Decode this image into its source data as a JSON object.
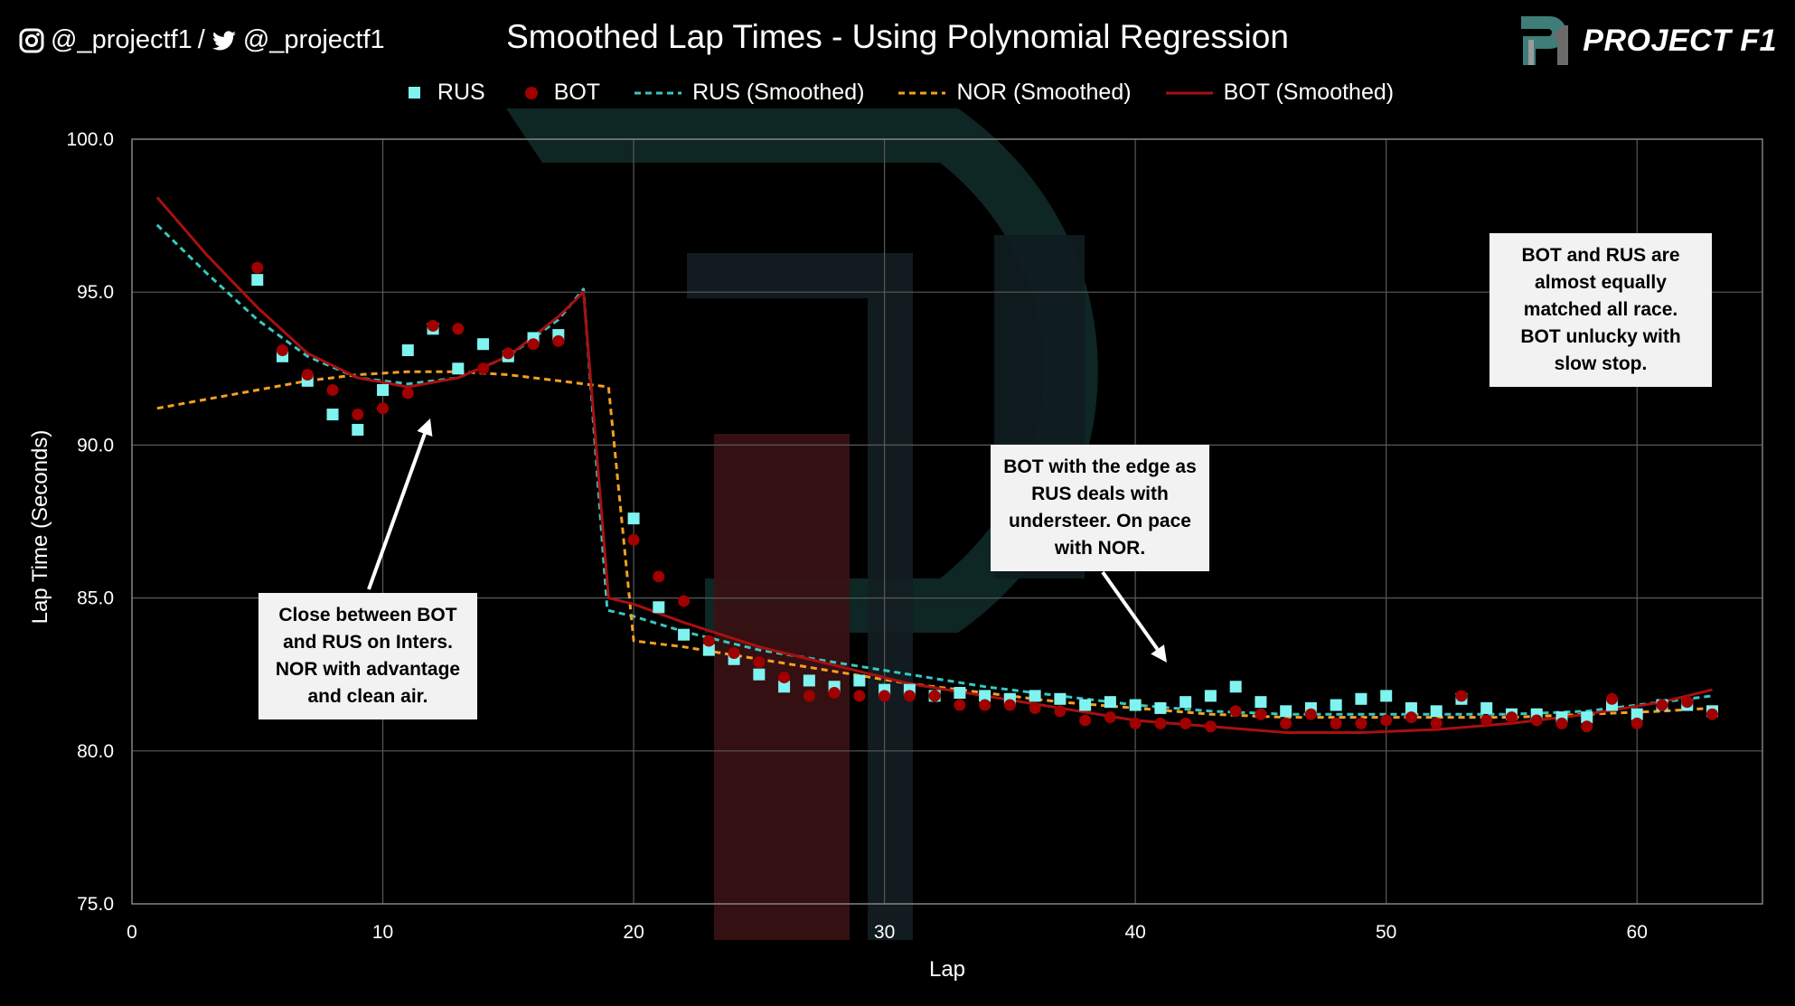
{
  "header": {
    "social_handle_ig": "@_projectf1",
    "separator": "/",
    "social_handle_tw": "@_projectf1",
    "brand": "PROJECT F1",
    "watermark_letters": "P1"
  },
  "annotations": [
    {
      "id": "note-inters",
      "text": "Close between BOT and RUS on Inters. NOR with advantage and clean air."
    },
    {
      "id": "note-edge",
      "text": "BOT with the edge as RUS deals with understeer. On pace with NOR."
    },
    {
      "id": "note-matched",
      "text": "BOT and RUS are almost equally matched all race. BOT unlucky with slow stop."
    }
  ],
  "colors": {
    "background": "#000000",
    "rus": "#7ff3f0",
    "bot": "#a00000",
    "rus_smoothed": "#39c7c0",
    "nor_smoothed": "#f4a020",
    "bot_smoothed": "#a81010",
    "grid": "#595959",
    "note_bg": "#f2f2f2"
  },
  "chart_data": {
    "type": "scatter",
    "title": "Smoothed Lap Times - Using Polynomial Regression",
    "xlabel": "Lap",
    "ylabel": "Lap Time (Seconds)",
    "xlim": [
      0,
      65
    ],
    "ylim": [
      75.0,
      100.0
    ],
    "xticks": [
      0,
      10,
      20,
      30,
      40,
      50,
      60
    ],
    "yticks": [
      75.0,
      80.0,
      85.0,
      90.0,
      95.0,
      100.0
    ],
    "ytick_labels": [
      "75.0",
      "80.0",
      "85.0",
      "90.0",
      "95.0",
      "100.0"
    ],
    "legend": [
      "RUS",
      "BOT",
      "RUS (Smoothed)",
      "NOR (Smoothed)",
      "BOT (Smoothed)"
    ],
    "legend_position": "top",
    "grid": true,
    "series": [
      {
        "name": "RUS",
        "kind": "markers-square",
        "x": [
          5,
          6,
          7,
          8,
          9,
          10,
          11,
          12,
          13,
          14,
          15,
          16,
          17,
          20,
          21,
          22,
          23,
          24,
          25,
          26,
          27,
          28,
          29,
          30,
          31,
          32,
          33,
          34,
          35,
          36,
          37,
          38,
          39,
          40,
          41,
          42,
          43,
          44,
          45,
          46,
          47,
          48,
          49,
          50,
          51,
          52,
          53,
          54,
          55,
          56,
          57,
          58,
          59,
          60,
          61,
          62,
          63
        ],
        "y": [
          95.4,
          92.9,
          92.1,
          91.0,
          90.5,
          91.8,
          93.1,
          93.8,
          92.5,
          93.3,
          92.9,
          93.5,
          93.6,
          87.6,
          84.7,
          83.8,
          83.3,
          83.0,
          82.5,
          82.1,
          82.3,
          82.1,
          82.3,
          82.0,
          82.0,
          81.8,
          81.9,
          81.8,
          81.7,
          81.8,
          81.7,
          81.5,
          81.6,
          81.5,
          81.4,
          81.6,
          81.8,
          82.1,
          81.6,
          81.3,
          81.4,
          81.5,
          81.7,
          81.8,
          81.4,
          81.3,
          81.7,
          81.4,
          81.2,
          81.2,
          81.1,
          81.1,
          81.5,
          81.2,
          81.5,
          81.5,
          81.3
        ]
      },
      {
        "name": "BOT",
        "kind": "markers-circle",
        "x": [
          5,
          6,
          7,
          8,
          9,
          10,
          11,
          12,
          13,
          14,
          15,
          16,
          17,
          20,
          21,
          22,
          23,
          24,
          25,
          26,
          27,
          28,
          29,
          30,
          31,
          32,
          33,
          34,
          35,
          36,
          37,
          38,
          39,
          40,
          41,
          42,
          43,
          44,
          45,
          46,
          47,
          48,
          49,
          50,
          51,
          52,
          53,
          54,
          55,
          56,
          57,
          58,
          59,
          60,
          61,
          62,
          63
        ],
        "y": [
          95.8,
          93.1,
          92.3,
          91.8,
          91.0,
          91.2,
          91.7,
          93.9,
          93.8,
          92.5,
          93.0,
          93.3,
          93.4,
          86.9,
          85.7,
          84.9,
          83.6,
          83.2,
          82.9,
          82.4,
          81.8,
          81.9,
          81.8,
          81.8,
          81.8,
          81.8,
          81.5,
          81.5,
          81.5,
          81.4,
          81.3,
          81.0,
          81.1,
          80.9,
          80.9,
          80.9,
          80.8,
          81.3,
          81.2,
          80.9,
          81.2,
          80.9,
          80.9,
          81.0,
          81.1,
          80.9,
          81.8,
          81.0,
          81.1,
          81.0,
          80.9,
          80.8,
          81.7,
          80.9,
          81.5,
          81.6,
          81.2
        ]
      },
      {
        "name": "RUS (Smoothed)",
        "kind": "dashed-line",
        "x": [
          1,
          3,
          5,
          7,
          9,
          11,
          13,
          15,
          17,
          18,
          18.95,
          20,
          22,
          25,
          28,
          31,
          34,
          37,
          40,
          43,
          46,
          49,
          52,
          55,
          58,
          61,
          63
        ],
        "y": [
          97.2,
          95.6,
          94.1,
          92.9,
          92.2,
          92.0,
          92.2,
          92.9,
          94.1,
          95.1,
          84.6,
          84.4,
          83.9,
          83.3,
          82.9,
          82.5,
          82.1,
          81.8,
          81.5,
          81.3,
          81.2,
          81.2,
          81.2,
          81.2,
          81.3,
          81.6,
          81.8
        ]
      },
      {
        "name": "NOR (Smoothed)",
        "kind": "dashed-line",
        "x": [
          1,
          3,
          5,
          7,
          9,
          11,
          13,
          15,
          17,
          19,
          20,
          22,
          25,
          28,
          31,
          34,
          37,
          40,
          43,
          46,
          49,
          52,
          55,
          58,
          61,
          63
        ],
        "y": [
          91.2,
          91.5,
          91.8,
          92.1,
          92.3,
          92.4,
          92.4,
          92.3,
          92.1,
          91.9,
          83.6,
          83.4,
          83.0,
          82.6,
          82.2,
          81.9,
          81.6,
          81.4,
          81.2,
          81.1,
          81.1,
          81.1,
          81.1,
          81.2,
          81.3,
          81.4
        ]
      },
      {
        "name": "BOT (Smoothed)",
        "kind": "solid-line",
        "x": [
          1,
          3,
          5,
          7,
          9,
          11,
          13,
          15,
          17,
          18,
          19,
          20,
          22,
          25,
          28,
          31,
          34,
          37,
          40,
          43,
          46,
          49,
          52,
          55,
          58,
          61,
          63
        ],
        "y": [
          98.1,
          96.2,
          94.5,
          93.0,
          92.2,
          91.9,
          92.2,
          92.9,
          94.2,
          95.0,
          85.0,
          84.8,
          84.2,
          83.4,
          82.8,
          82.2,
          81.8,
          81.4,
          81.0,
          80.8,
          80.6,
          80.6,
          80.7,
          80.9,
          81.2,
          81.6,
          82.0
        ]
      }
    ]
  }
}
